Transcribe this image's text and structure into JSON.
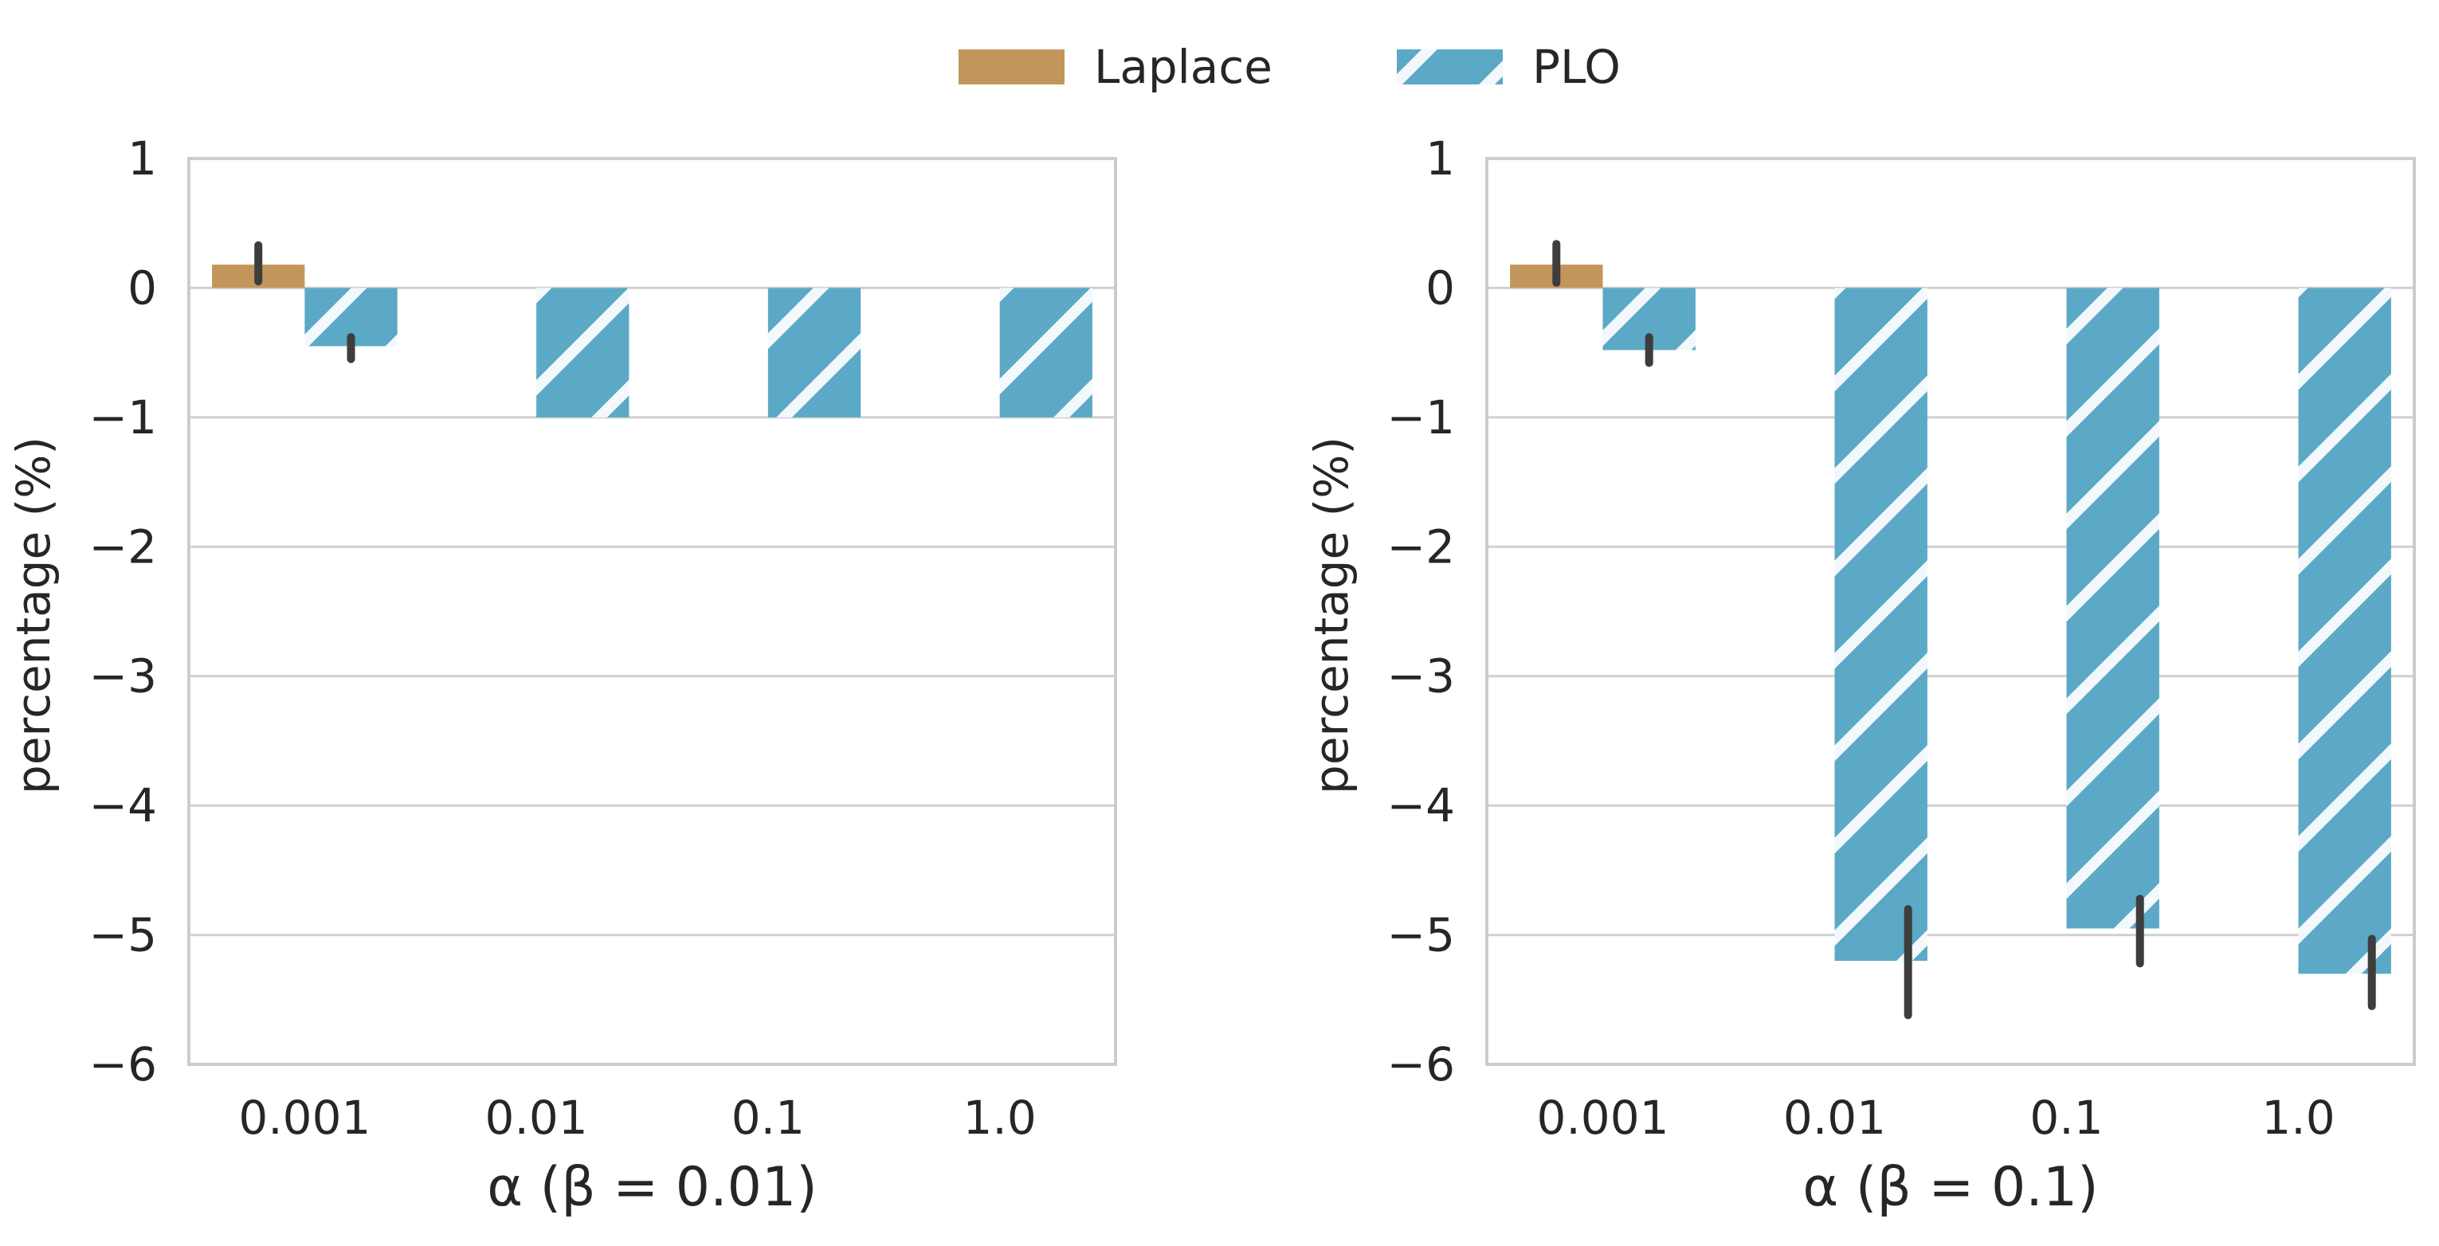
{
  "chart_data": {
    "type": "bar",
    "legend": {
      "position": "top-center",
      "entries": [
        {
          "name": "Laplace",
          "color": "#c2965a",
          "hatch": "none"
        },
        {
          "name": "PLO",
          "color": "#5ba9c6",
          "hatch": "diagonal"
        }
      ]
    },
    "panels": [
      {
        "xlabel": "α   (β = 0.01)",
        "ylabel": "percentage (%)",
        "ylim": [
          -6,
          1
        ],
        "yticks": [
          -6,
          -5,
          -4,
          -3,
          -2,
          -1,
          0,
          1
        ],
        "ytick_labels": [
          "−6",
          "−5",
          "−4",
          "−3",
          "−2",
          "−1",
          "0",
          "1"
        ],
        "grid": true,
        "categories": [
          "0.001",
          "0.01",
          "0.1",
          "1.0"
        ],
        "series": [
          {
            "name": "Laplace",
            "values": [
              0.18,
              0,
              0,
              0
            ],
            "err_low": [
              0.05,
              null,
              null,
              null
            ],
            "err_high": [
              0.33,
              null,
              null,
              null
            ]
          },
          {
            "name": "PLO",
            "values": [
              -0.45,
              -1.0,
              -1.0,
              -1.0
            ],
            "err_low": [
              -0.55,
              null,
              null,
              null
            ],
            "err_high": [
              -0.38,
              null,
              null,
              null
            ]
          }
        ]
      },
      {
        "xlabel": "α   (β = 0.1)",
        "ylabel": "percentage (%)",
        "ylim": [
          -6,
          1
        ],
        "yticks": [
          -6,
          -5,
          -4,
          -3,
          -2,
          -1,
          0,
          1
        ],
        "ytick_labels": [
          "−6",
          "−5",
          "−4",
          "−3",
          "−2",
          "−1",
          "0",
          "1"
        ],
        "grid": true,
        "categories": [
          "0.001",
          "0.01",
          "0.1",
          "1.0"
        ],
        "series": [
          {
            "name": "Laplace",
            "values": [
              0.18,
              0,
              0,
              0
            ],
            "err_low": [
              0.04,
              null,
              null,
              null
            ],
            "err_high": [
              0.34,
              null,
              null,
              null
            ]
          },
          {
            "name": "PLO",
            "values": [
              -0.48,
              -5.2,
              -4.95,
              -5.3
            ],
            "err_low": [
              -0.58,
              -5.62,
              -5.22,
              -5.55
            ],
            "err_high": [
              -0.38,
              -4.8,
              -4.72,
              -5.03
            ]
          }
        ]
      }
    ]
  }
}
